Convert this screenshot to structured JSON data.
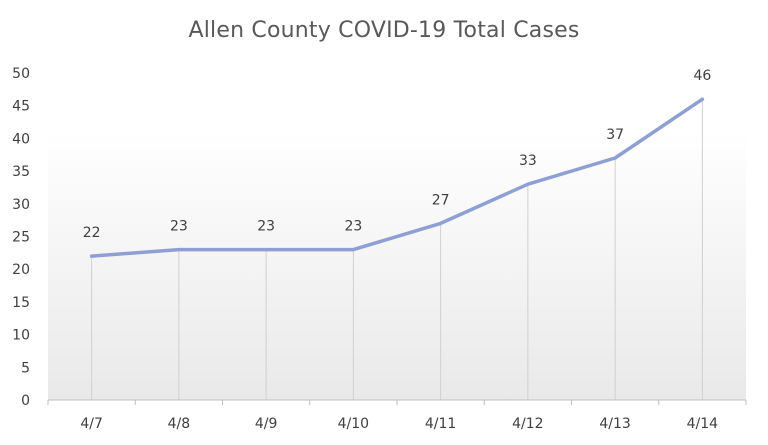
{
  "chart_data": {
    "type": "line",
    "title": "Allen County COVID-19 Total Cases",
    "categories": [
      "4/7",
      "4/8",
      "4/9",
      "4/10",
      "4/11",
      "4/12",
      "4/13",
      "4/14"
    ],
    "series": [
      {
        "values": [
          22,
          23,
          23,
          23,
          27,
          33,
          37,
          46
        ],
        "color": "#8E9FD4"
      }
    ],
    "ylim": [
      0,
      50
    ],
    "yticks": [
      0,
      5,
      10,
      15,
      20,
      25,
      30,
      35,
      40,
      45,
      50
    ],
    "data_labels": true,
    "drop_lines": true,
    "legend": "none"
  }
}
